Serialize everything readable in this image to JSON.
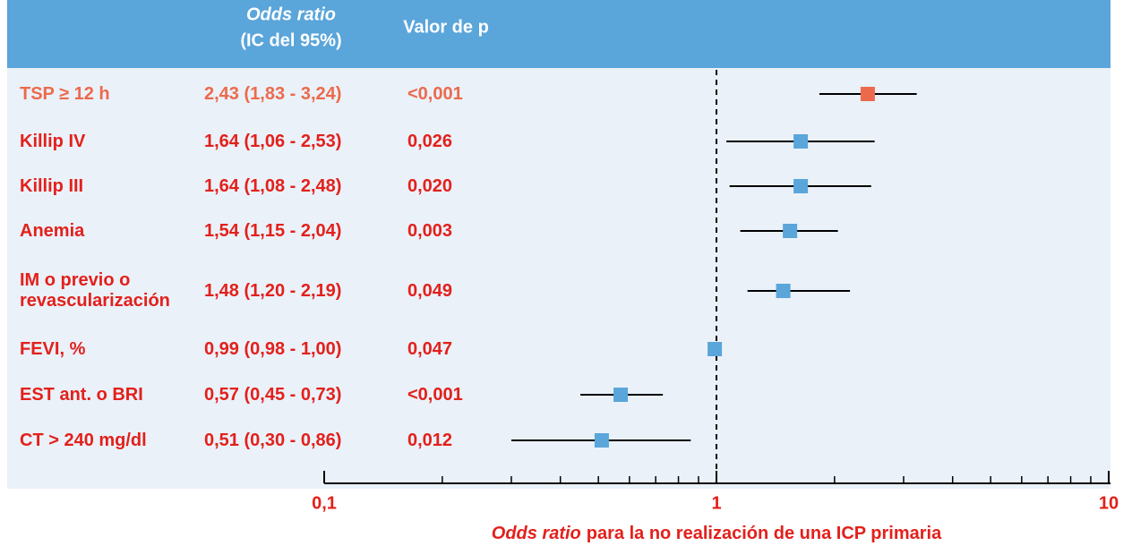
{
  "chart_data": {
    "type": "forest",
    "header": {
      "or_title": "Odds ratio",
      "or_subtitle": "(IC del 95%)",
      "p_title": "Valor de p"
    },
    "categories": [
      "TSP ≥ 12 h",
      "Killip IV",
      "Killip III",
      "Anemia",
      "IM o previo o revascularización",
      "FEVI, %",
      "EST ant. o BRI",
      "CT > 240 mg/dl"
    ],
    "values": [
      2.43,
      1.64,
      1.64,
      1.54,
      1.48,
      0.99,
      0.57,
      0.51
    ],
    "ci_low": [
      1.83,
      1.06,
      1.08,
      1.15,
      1.2,
      0.98,
      0.45,
      0.3
    ],
    "ci_high": [
      3.24,
      2.53,
      2.48,
      2.04,
      2.19,
      1.0,
      0.73,
      0.86
    ],
    "value_labels": [
      "2,43 (1,83 - 3,24)",
      "1,64 (1,06 - 2,53)",
      "1,64 (1,08 - 2,48)",
      "1,54 (1,15 - 2,04)",
      "1,48 (1,20 - 2,19)",
      "0,99 (0,98 - 1,00)",
      "0,57 (0,45 - 0,73)",
      "0,51 (0,30 - 0,86)"
    ],
    "p_values": [
      "<0,001",
      "0,026",
      "0,020",
      "0,003",
      "0,049",
      "0,047",
      "<0,001",
      "0,012"
    ],
    "marker_colors": [
      "#ec6a4c",
      "#5aa5da",
      "#5aa5da",
      "#5aa5da",
      "#5aa5da",
      "#5aa5da",
      "#5aa5da",
      "#5aa5da"
    ],
    "text_colors": [
      "#ec6a4c",
      "#e3201b",
      "#e3201b",
      "#e3201b",
      "#e3201b",
      "#e3201b",
      "#e3201b",
      "#e3201b"
    ],
    "x_scale": "log",
    "xlim": [
      0.1,
      10
    ],
    "xticks": [
      {
        "value": 0.1,
        "label": "0,1"
      },
      1,
      10
    ],
    "reference_line": 1,
    "xlabel": [
      "Odds ratio",
      "para la no realización de una ICP primaria"
    ]
  }
}
